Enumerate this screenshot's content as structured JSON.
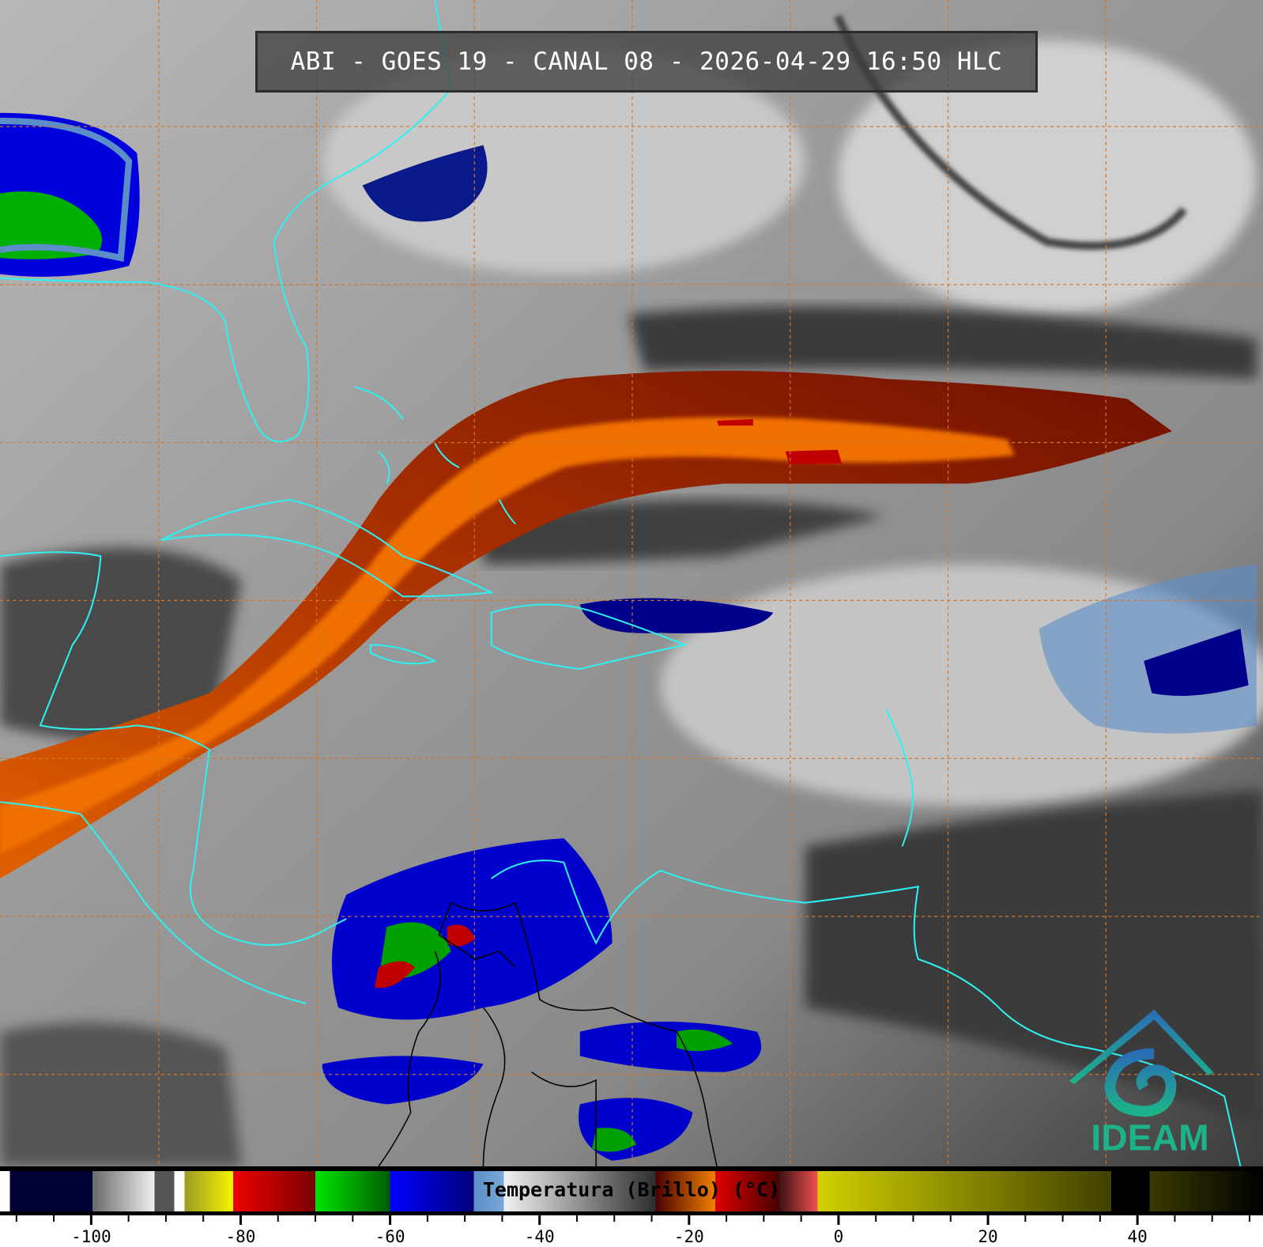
{
  "title": "ABI - GOES 19 - CANAL 08 - 2026-04-29 16:50 HLC",
  "logo": {
    "text": "IDEAM",
    "color_top": "#2a6db5",
    "color_bottom": "#1db38a"
  },
  "colorbar": {
    "label": "Temperatura (Brillo) (°C)",
    "range": [
      -112.2,
      56.8
    ],
    "major_ticks": [
      -100,
      -80,
      -60,
      -40,
      -20,
      0,
      20,
      40
    ],
    "major_tick_labels": [
      "-100",
      "-80",
      "-60",
      "-40",
      "-20",
      "0",
      "20",
      "40"
    ],
    "minor_tick_step": 5,
    "segments": [
      {
        "from": -112.2,
        "to": -110.9,
        "c1": "#ffffff",
        "c2": "#ffffff"
      },
      {
        "from": -110.9,
        "to": -99.8,
        "c1": "#000035",
        "c2": "#000035"
      },
      {
        "from": -99.8,
        "to": -91.5,
        "c1": "#6a6a6a",
        "c2": "#f0f0f0"
      },
      {
        "from": -91.5,
        "to": -88.9,
        "c1": "#555555",
        "c2": "#555555"
      },
      {
        "from": -88.9,
        "to": -87.5,
        "c1": "#ffffff",
        "c2": "#ffffff"
      },
      {
        "from": -87.5,
        "to": -81.0,
        "c1": "#9c9a24",
        "c2": "#f6f400"
      },
      {
        "from": -81.0,
        "to": -70.0,
        "c1": "#ee0000",
        "c2": "#7a0000"
      },
      {
        "from": -70.0,
        "to": -60.0,
        "c1": "#00e600",
        "c2": "#005c00"
      },
      {
        "from": -60.0,
        "to": -48.8,
        "c1": "#0000ff",
        "c2": "#00007a"
      },
      {
        "from": -48.8,
        "to": -44.8,
        "c1": "#5b8ec8",
        "c2": "#7aa8d8"
      },
      {
        "from": -44.8,
        "to": -24.5,
        "c1": "#f2f2f2",
        "c2": "#2e2e2e"
      },
      {
        "from": -24.5,
        "to": -16.5,
        "c1": "#4a0000",
        "c2": "#f08000"
      },
      {
        "from": -16.5,
        "to": -8.0,
        "c1": "#dd0000",
        "c2": "#4a0000"
      },
      {
        "from": -8.0,
        "to": -2.8,
        "c1": "#3a1010",
        "c2": "#f05050"
      },
      {
        "from": -2.8,
        "to": 36.5,
        "c1": "#d2d000",
        "c2": "#404000"
      },
      {
        "from": 36.5,
        "to": 41.6,
        "c1": "#000000",
        "c2": "#000000"
      },
      {
        "from": 41.6,
        "to": 56.8,
        "c1": "#3a3a00",
        "c2": "#000000"
      }
    ]
  },
  "map": {
    "grid_color": "#d2782a",
    "coastline_color": "#2ef0f0",
    "border_color": "#000000"
  }
}
